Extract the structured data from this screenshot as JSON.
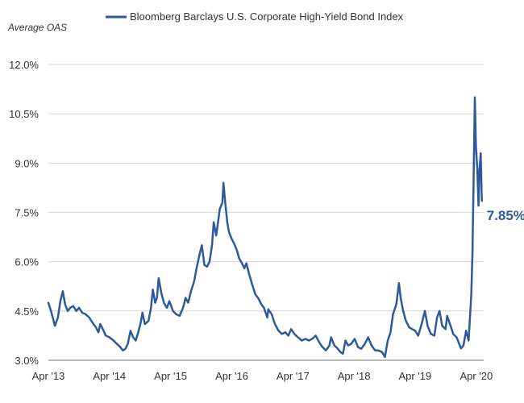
{
  "chart_data": {
    "type": "line",
    "title": "",
    "ylabel": "Average OAS",
    "xlabel": "",
    "x_range": [
      "2013-04-01",
      "2020-05-15"
    ],
    "ylim": [
      3.0,
      12.0
    ],
    "y_ticks": [
      3.0,
      4.5,
      6.0,
      7.5,
      9.0,
      10.5,
      12.0
    ],
    "y_tick_labels": [
      "3.0%",
      "4.5%",
      "6.0%",
      "7.5%",
      "9.0%",
      "10.5%",
      "12.0%"
    ],
    "x_ticks": [
      "2013-04-01",
      "2014-04-01",
      "2015-04-01",
      "2016-04-01",
      "2017-04-01",
      "2018-04-01",
      "2019-04-01",
      "2020-04-01"
    ],
    "x_tick_labels": [
      "Apr '13",
      "Apr '14",
      "Apr '15",
      "Apr '16",
      "Apr '17",
      "Apr '18",
      "Apr '19",
      "Apr '20"
    ],
    "grid": "horizontal",
    "legend_position": "top",
    "series": [
      {
        "name": "Bloomberg Barclays U.S. Corporate High-Yield Bond Index",
        "color": "#2e5a9c",
        "points": [
          [
            "2013-04-01",
            4.75
          ],
          [
            "2013-04-20",
            4.45
          ],
          [
            "2013-05-10",
            4.05
          ],
          [
            "2013-05-28",
            4.3
          ],
          [
            "2013-06-12",
            4.8
          ],
          [
            "2013-06-26",
            5.1
          ],
          [
            "2013-07-10",
            4.7
          ],
          [
            "2013-07-25",
            4.5
          ],
          [
            "2013-08-10",
            4.6
          ],
          [
            "2013-08-28",
            4.65
          ],
          [
            "2013-09-15",
            4.5
          ],
          [
            "2013-10-01",
            4.6
          ],
          [
            "2013-10-20",
            4.45
          ],
          [
            "2013-11-10",
            4.4
          ],
          [
            "2013-12-01",
            4.3
          ],
          [
            "2013-12-20",
            4.15
          ],
          [
            "2014-01-10",
            4.0
          ],
          [
            "2014-01-25",
            3.85
          ],
          [
            "2014-02-05",
            4.1
          ],
          [
            "2014-02-20",
            3.95
          ],
          [
            "2014-03-10",
            3.75
          ],
          [
            "2014-04-01",
            3.7
          ],
          [
            "2014-04-25",
            3.6
          ],
          [
            "2014-05-15",
            3.5
          ],
          [
            "2014-06-05",
            3.4
          ],
          [
            "2014-06-20",
            3.3
          ],
          [
            "2014-07-05",
            3.35
          ],
          [
            "2014-07-20",
            3.5
          ],
          [
            "2014-08-05",
            3.9
          ],
          [
            "2014-08-20",
            3.7
          ],
          [
            "2014-09-05",
            3.6
          ],
          [
            "2014-09-20",
            3.85
          ],
          [
            "2014-10-05",
            4.15
          ],
          [
            "2014-10-15",
            4.45
          ],
          [
            "2014-10-30",
            4.1
          ],
          [
            "2014-11-20",
            4.2
          ],
          [
            "2014-12-05",
            4.6
          ],
          [
            "2014-12-16",
            5.15
          ],
          [
            "2014-12-30",
            4.75
          ],
          [
            "2015-01-10",
            4.9
          ],
          [
            "2015-01-20",
            5.5
          ],
          [
            "2015-02-05",
            5.05
          ],
          [
            "2015-02-20",
            4.75
          ],
          [
            "2015-03-10",
            4.6
          ],
          [
            "2015-03-25",
            4.8
          ],
          [
            "2015-04-15",
            4.5
          ],
          [
            "2015-05-05",
            4.4
          ],
          [
            "2015-05-25",
            4.35
          ],
          [
            "2015-06-15",
            4.6
          ],
          [
            "2015-06-30",
            4.9
          ],
          [
            "2015-07-15",
            4.75
          ],
          [
            "2015-08-01",
            5.1
          ],
          [
            "2015-08-20",
            5.4
          ],
          [
            "2015-09-05",
            5.85
          ],
          [
            "2015-09-25",
            6.3
          ],
          [
            "2015-10-05",
            6.5
          ],
          [
            "2015-10-20",
            5.9
          ],
          [
            "2015-11-05",
            5.85
          ],
          [
            "2015-11-20",
            6.0
          ],
          [
            "2015-12-05",
            6.5
          ],
          [
            "2015-12-15",
            7.2
          ],
          [
            "2015-12-30",
            6.8
          ],
          [
            "2016-01-10",
            7.2
          ],
          [
            "2016-01-20",
            7.6
          ],
          [
            "2016-02-05",
            7.8
          ],
          [
            "2016-02-11",
            8.4
          ],
          [
            "2016-02-22",
            7.8
          ],
          [
            "2016-03-05",
            7.2
          ],
          [
            "2016-03-15",
            6.9
          ],
          [
            "2016-03-31",
            6.7
          ],
          [
            "2016-04-15",
            6.55
          ],
          [
            "2016-05-01",
            6.35
          ],
          [
            "2016-05-15",
            6.1
          ],
          [
            "2016-06-01",
            5.95
          ],
          [
            "2016-06-15",
            5.8
          ],
          [
            "2016-06-27",
            5.95
          ],
          [
            "2016-07-15",
            5.6
          ],
          [
            "2016-08-01",
            5.3
          ],
          [
            "2016-08-20",
            5.0
          ],
          [
            "2016-09-05",
            4.9
          ],
          [
            "2016-09-25",
            4.7
          ],
          [
            "2016-10-10",
            4.6
          ],
          [
            "2016-10-30",
            4.3
          ],
          [
            "2016-11-05",
            4.55
          ],
          [
            "2016-11-25",
            4.4
          ],
          [
            "2016-12-15",
            4.1
          ],
          [
            "2017-01-05",
            3.9
          ],
          [
            "2017-01-25",
            3.8
          ],
          [
            "2017-02-15",
            3.85
          ],
          [
            "2017-03-05",
            3.75
          ],
          [
            "2017-03-22",
            3.95
          ],
          [
            "2017-04-10",
            3.8
          ],
          [
            "2017-05-01",
            3.7
          ],
          [
            "2017-05-25",
            3.6
          ],
          [
            "2017-06-15",
            3.65
          ],
          [
            "2017-07-05",
            3.6
          ],
          [
            "2017-07-25",
            3.65
          ],
          [
            "2017-08-15",
            3.75
          ],
          [
            "2017-09-05",
            3.55
          ],
          [
            "2017-09-25",
            3.4
          ],
          [
            "2017-10-15",
            3.3
          ],
          [
            "2017-11-05",
            3.45
          ],
          [
            "2017-11-15",
            3.7
          ],
          [
            "2017-12-05",
            3.45
          ],
          [
            "2017-12-25",
            3.35
          ],
          [
            "2018-01-10",
            3.25
          ],
          [
            "2018-01-25",
            3.2
          ],
          [
            "2018-02-09",
            3.6
          ],
          [
            "2018-02-25",
            3.45
          ],
          [
            "2018-03-15",
            3.5
          ],
          [
            "2018-04-05",
            3.65
          ],
          [
            "2018-04-25",
            3.4
          ],
          [
            "2018-05-15",
            3.35
          ],
          [
            "2018-06-05",
            3.5
          ],
          [
            "2018-06-25",
            3.7
          ],
          [
            "2018-07-15",
            3.45
          ],
          [
            "2018-08-05",
            3.3
          ],
          [
            "2018-08-25",
            3.3
          ],
          [
            "2018-09-15",
            3.25
          ],
          [
            "2018-10-03",
            3.1
          ],
          [
            "2018-10-20",
            3.6
          ],
          [
            "2018-11-05",
            3.85
          ],
          [
            "2018-11-20",
            4.4
          ],
          [
            "2018-12-10",
            4.7
          ],
          [
            "2018-12-26",
            5.35
          ],
          [
            "2019-01-05",
            4.9
          ],
          [
            "2019-01-20",
            4.5
          ],
          [
            "2019-02-05",
            4.2
          ],
          [
            "2019-02-25",
            4.0
          ],
          [
            "2019-03-15",
            3.95
          ],
          [
            "2019-04-01",
            3.9
          ],
          [
            "2019-04-20",
            3.75
          ],
          [
            "2019-05-10",
            4.1
          ],
          [
            "2019-05-30",
            4.5
          ],
          [
            "2019-06-15",
            4.05
          ],
          [
            "2019-07-05",
            3.8
          ],
          [
            "2019-07-25",
            3.75
          ],
          [
            "2019-08-10",
            4.3
          ],
          [
            "2019-08-25",
            4.5
          ],
          [
            "2019-09-10",
            4.05
          ],
          [
            "2019-09-30",
            3.95
          ],
          [
            "2019-10-10",
            4.35
          ],
          [
            "2019-10-30",
            4.05
          ],
          [
            "2019-11-15",
            3.8
          ],
          [
            "2019-12-05",
            3.7
          ],
          [
            "2019-12-31",
            3.36
          ],
          [
            "2020-01-15",
            3.45
          ],
          [
            "2020-01-31",
            3.9
          ],
          [
            "2020-02-15",
            3.6
          ],
          [
            "2020-02-24",
            4.4
          ],
          [
            "2020-03-02",
            5.0
          ],
          [
            "2020-03-09",
            6.3
          ],
          [
            "2020-03-16",
            8.5
          ],
          [
            "2020-03-23",
            11.0
          ],
          [
            "2020-03-30",
            9.5
          ],
          [
            "2020-04-07",
            8.8
          ],
          [
            "2020-04-14",
            7.7
          ],
          [
            "2020-04-20",
            8.8
          ],
          [
            "2020-04-27",
            9.3
          ],
          [
            "2020-05-04",
            7.85
          ]
        ],
        "end_label": "7.85%"
      }
    ]
  }
}
